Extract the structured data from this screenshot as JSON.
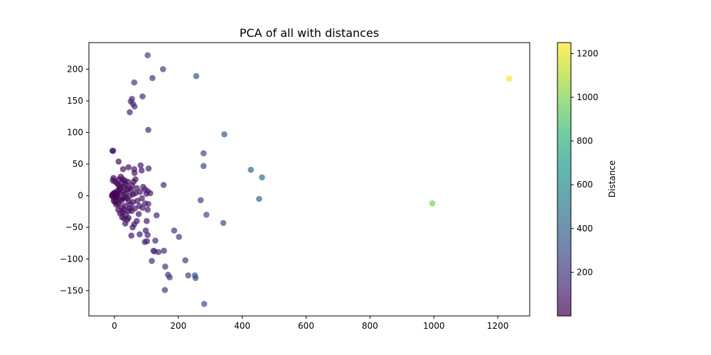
{
  "chart_data": {
    "type": "scatter",
    "title": "PCA of all with distances",
    "xlabel": "",
    "ylabel": "",
    "xlim": [
      -80,
      1300
    ],
    "ylim": [
      -190,
      242
    ],
    "xticks": [
      0,
      200,
      400,
      600,
      800,
      1000,
      1200
    ],
    "yticks": [
      -150,
      -100,
      -50,
      0,
      50,
      100,
      150,
      200
    ],
    "grid": false,
    "legend": "none",
    "point_alpha": 0.7,
    "colorbar": {
      "label": "Distance",
      "range": [
        0,
        1250
      ],
      "ticks": [
        200,
        400,
        600,
        800,
        1000,
        1200
      ],
      "colormap": "viridis",
      "stops": [
        "#440154",
        "#482878",
        "#3e4989",
        "#31688e",
        "#26828e",
        "#1f9e89",
        "#35b779",
        "#6ece58",
        "#b5de2b",
        "#fde725"
      ]
    },
    "series": [
      {
        "points": [
          {
            "x": 1236,
            "y": 185,
            "d": 1250
          },
          {
            "x": 995,
            "y": -12,
            "d": 1000
          },
          {
            "x": 462,
            "y": 29,
            "d": 460
          },
          {
            "x": 427,
            "y": 41,
            "d": 430
          },
          {
            "x": 453,
            "y": -5,
            "d": 455
          },
          {
            "x": 344,
            "y": 97,
            "d": 360
          },
          {
            "x": 341,
            "y": -43,
            "d": 345
          },
          {
            "x": 279,
            "y": 67,
            "d": 290
          },
          {
            "x": 279,
            "y": 47,
            "d": 285
          },
          {
            "x": 270,
            "y": -7,
            "d": 270
          },
          {
            "x": 288,
            "y": -30,
            "d": 290
          },
          {
            "x": 281,
            "y": -171,
            "d": 330
          },
          {
            "x": 256,
            "y": 189,
            "d": 320
          },
          {
            "x": 252,
            "y": -126,
            "d": 285
          },
          {
            "x": 254,
            "y": -130,
            "d": 290
          },
          {
            "x": 231,
            "y": -126,
            "d": 265
          },
          {
            "x": 222,
            "y": -102,
            "d": 245
          },
          {
            "x": 202,
            "y": -65,
            "d": 215
          },
          {
            "x": 187,
            "y": -55,
            "d": 195
          },
          {
            "x": 152,
            "y": 200,
            "d": 250
          },
          {
            "x": 104,
            "y": 222,
            "d": 245
          },
          {
            "x": 119,
            "y": 186,
            "d": 220
          },
          {
            "x": 88,
            "y": 157,
            "d": 180
          },
          {
            "x": 62,
            "y": 179,
            "d": 190
          },
          {
            "x": 55,
            "y": 153,
            "d": 165
          },
          {
            "x": 51,
            "y": 149,
            "d": 160
          },
          {
            "x": 58,
            "y": 145,
            "d": 160
          },
          {
            "x": 63,
            "y": 141,
            "d": 155
          },
          {
            "x": 48,
            "y": 132,
            "d": 140
          },
          {
            "x": 106,
            "y": 104,
            "d": 150
          },
          {
            "x": 173,
            "y": -129,
            "d": 215
          },
          {
            "x": 168,
            "y": -125,
            "d": 210
          },
          {
            "x": 159,
            "y": -112,
            "d": 195
          },
          {
            "x": 158,
            "y": -149,
            "d": 215
          },
          {
            "x": 155,
            "y": -87,
            "d": 175
          },
          {
            "x": 138,
            "y": -89,
            "d": 165
          },
          {
            "x": 122,
            "y": -87,
            "d": 150
          },
          {
            "x": 126,
            "y": -88,
            "d": 155
          },
          {
            "x": 117,
            "y": -103,
            "d": 155
          },
          {
            "x": 128,
            "y": -71,
            "d": 145
          },
          {
            "x": 95,
            "y": -73,
            "d": 120
          },
          {
            "x": 102,
            "y": -72,
            "d": 125
          },
          {
            "x": 104,
            "y": -62,
            "d": 120
          },
          {
            "x": 98,
            "y": -55,
            "d": 110
          },
          {
            "x": 79,
            "y": -61,
            "d": 100
          },
          {
            "x": 53,
            "y": -63,
            "d": 85
          },
          {
            "x": 132,
            "y": -31,
            "d": 135
          },
          {
            "x": 154,
            "y": 17,
            "d": 155
          },
          {
            "x": 107,
            "y": 43,
            "d": 115
          },
          {
            "x": 82,
            "y": 48,
            "d": 95
          },
          {
            "x": 85,
            "y": 40,
            "d": 95
          },
          {
            "x": 62,
            "y": 42,
            "d": 75
          },
          {
            "x": 63,
            "y": 36,
            "d": 72
          },
          {
            "x": 44,
            "y": 45,
            "d": 63
          },
          {
            "x": 27,
            "y": 42,
            "d": 50
          },
          {
            "x": 13,
            "y": 54,
            "d": 55
          },
          {
            "x": -6,
            "y": 71,
            "d": 70
          },
          {
            "x": -4,
            "y": 71,
            "d": 70
          },
          {
            "x": 104,
            "y": 7,
            "d": 104
          },
          {
            "x": 112,
            "y": 4,
            "d": 112
          },
          {
            "x": 96,
            "y": 10,
            "d": 96
          },
          {
            "x": 100,
            "y": 3,
            "d": 100
          },
          {
            "x": 106,
            "y": -13,
            "d": 107
          },
          {
            "x": 96,
            "y": -12,
            "d": 97
          },
          {
            "x": 88,
            "y": -19,
            "d": 90
          },
          {
            "x": 104,
            "y": -22,
            "d": 106
          },
          {
            "x": 101,
            "y": -40,
            "d": 109
          },
          {
            "x": 76,
            "y": -29,
            "d": 81
          },
          {
            "x": 70,
            "y": -40,
            "d": 80
          },
          {
            "x": 62,
            "y": -45,
            "d": 77
          },
          {
            "x": 57,
            "y": -50,
            "d": 76
          },
          {
            "x": 44,
            "y": -35,
            "d": 56
          },
          {
            "x": 36,
            "y": -30,
            "d": 47
          },
          {
            "x": 48,
            "y": -20,
            "d": 52
          },
          {
            "x": 58,
            "y": -10,
            "d": 59
          },
          {
            "x": 66,
            "y": 4,
            "d": 66
          },
          {
            "x": 70,
            "y": 12,
            "d": 71
          },
          {
            "x": 55,
            "y": 16,
            "d": 57
          },
          {
            "x": 52,
            "y": 9,
            "d": 53
          },
          {
            "x": 48,
            "y": 0,
            "d": 48
          },
          {
            "x": 44,
            "y": -8,
            "d": 45
          },
          {
            "x": 40,
            "y": 10,
            "d": 41
          },
          {
            "x": 36,
            "y": 18,
            "d": 40
          },
          {
            "x": 34,
            "y": -16,
            "d": 38
          },
          {
            "x": 30,
            "y": -22,
            "d": 37
          },
          {
            "x": 26,
            "y": -26,
            "d": 37
          },
          {
            "x": 22,
            "y": -18,
            "d": 28
          },
          {
            "x": 20,
            "y": 12,
            "d": 23
          },
          {
            "x": 18,
            "y": 4,
            "d": 18
          },
          {
            "x": 16,
            "y": -6,
            "d": 17
          },
          {
            "x": 12,
            "y": -12,
            "d": 17
          },
          {
            "x": 10,
            "y": 8,
            "d": 13
          },
          {
            "x": 8,
            "y": -2,
            "d": 8
          },
          {
            "x": 6,
            "y": 3,
            "d": 7
          },
          {
            "x": 4,
            "y": -4,
            "d": 6
          },
          {
            "x": 2,
            "y": 5,
            "d": 5
          },
          {
            "x": 0,
            "y": 0,
            "d": 0
          },
          {
            "x": -2,
            "y": 4,
            "d": 4
          },
          {
            "x": -4,
            "y": -2,
            "d": 4
          },
          {
            "x": -6,
            "y": 2,
            "d": 6
          },
          {
            "x": -8,
            "y": 0,
            "d": 8
          },
          {
            "x": -5,
            "y": 24,
            "d": 25
          },
          {
            "x": -3,
            "y": 28,
            "d": 28
          },
          {
            "x": 3,
            "y": 22,
            "d": 22
          },
          {
            "x": 9,
            "y": 19,
            "d": 21
          },
          {
            "x": 14,
            "y": 16,
            "d": 21
          },
          {
            "x": 24,
            "y": 20,
            "d": 31
          },
          {
            "x": 30,
            "y": 14,
            "d": 33
          },
          {
            "x": 28,
            "y": 6,
            "d": 29
          },
          {
            "x": 32,
            "y": -2,
            "d": 32
          },
          {
            "x": 38,
            "y": -4,
            "d": 38
          },
          {
            "x": 42,
            "y": 22,
            "d": 47
          },
          {
            "x": 46,
            "y": 12,
            "d": 48
          },
          {
            "x": 50,
            "y": -14,
            "d": 52
          },
          {
            "x": 54,
            "y": -24,
            "d": 59
          },
          {
            "x": 40,
            "y": -38,
            "d": 55
          },
          {
            "x": 34,
            "y": -44,
            "d": 56
          },
          {
            "x": 24,
            "y": -34,
            "d": 42
          },
          {
            "x": 18,
            "y": -28,
            "d": 33
          },
          {
            "x": 12,
            "y": -22,
            "d": 25
          },
          {
            "x": 6,
            "y": -14,
            "d": 15
          },
          {
            "x": 2,
            "y": -10,
            "d": 10
          },
          {
            "x": -2,
            "y": -8,
            "d": 8
          },
          {
            "x": 14,
            "y": 26,
            "d": 30
          },
          {
            "x": 20,
            "y": 30,
            "d": 36
          },
          {
            "x": 26,
            "y": 26,
            "d": 37
          },
          {
            "x": 32,
            "y": 24,
            "d": 40
          },
          {
            "x": 60,
            "y": 22,
            "d": 64
          },
          {
            "x": 64,
            "y": -20,
            "d": 67
          },
          {
            "x": 72,
            "y": -8,
            "d": 72
          },
          {
            "x": 80,
            "y": 6,
            "d": 80
          },
          {
            "x": 86,
            "y": -4,
            "d": 86
          },
          {
            "x": 90,
            "y": 14,
            "d": 91
          },
          {
            "x": 78,
            "y": -16,
            "d": 80
          },
          {
            "x": 66,
            "y": 26,
            "d": 71
          },
          {
            "x": 58,
            "y": 2,
            "d": 58
          },
          {
            "x": 36,
            "y": 4,
            "d": 36
          },
          {
            "x": 22,
            "y": -8,
            "d": 23
          },
          {
            "x": 10,
            "y": 2,
            "d": 10
          },
          {
            "x": 26,
            "y": -4,
            "d": 26
          },
          {
            "x": 16,
            "y": 10,
            "d": 19
          },
          {
            "x": 44,
            "y": -24,
            "d": 50
          },
          {
            "x": 30,
            "y": -36,
            "d": 47
          }
        ]
      }
    ]
  }
}
